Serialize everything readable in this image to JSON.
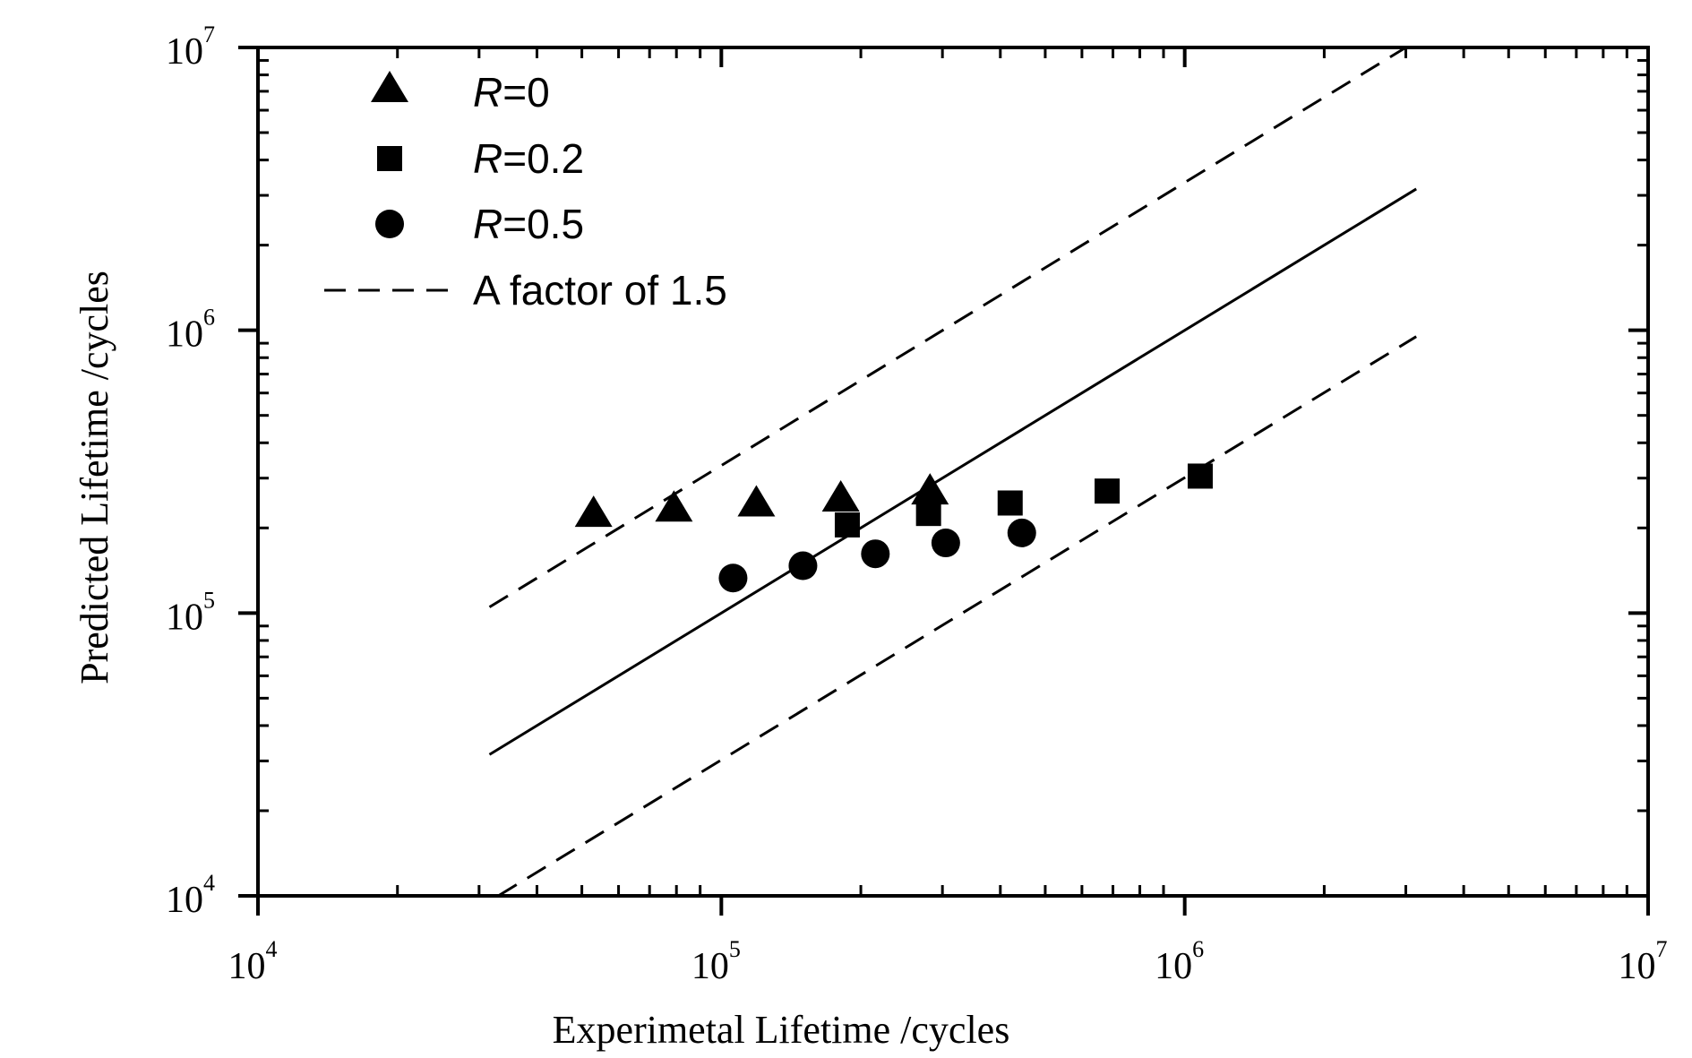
{
  "chart_data": {
    "type": "scatter",
    "xlabel": "Experimetal Lifetime /cycles",
    "ylabel": "Predicted Lifetime /cycles",
    "x_scale": "log",
    "y_scale": "log",
    "xlim": [
      10000,
      10000000
    ],
    "ylim": [
      10000,
      10000000
    ],
    "x_major_ticks": [
      {
        "base": "10",
        "exp": "4",
        "value": 10000
      },
      {
        "base": "10",
        "exp": "5",
        "value": 100000
      },
      {
        "base": "10",
        "exp": "6",
        "value": 1000000
      },
      {
        "base": "10",
        "exp": "7",
        "value": 10000000
      }
    ],
    "y_major_ticks": [
      {
        "base": "10",
        "exp": "4",
        "value": 10000
      },
      {
        "base": "10",
        "exp": "5",
        "value": 100000
      },
      {
        "base": "10",
        "exp": "6",
        "value": 1000000
      },
      {
        "base": "10",
        "exp": "7",
        "value": 10000000
      }
    ],
    "grid": false,
    "legend_position": "top-left",
    "series": [
      {
        "name_var": "R",
        "name_rest": "=0",
        "marker": "triangle",
        "x": [
          53000,
          79000,
          119000,
          181000,
          282000
        ],
        "y": [
          225000,
          235000,
          245000,
          255000,
          270000
        ]
      },
      {
        "name_var": "R",
        "name_rest": "=0.2",
        "marker": "square",
        "x": [
          187000,
          280000,
          420000,
          680000,
          1080000
        ],
        "y": [
          205000,
          225000,
          245000,
          270000,
          305000
        ]
      },
      {
        "name_var": "R",
        "name_rest": "=0.5",
        "marker": "circle",
        "x": [
          106000,
          150000,
          215000,
          305000,
          445000
        ],
        "y": [
          133000,
          147000,
          162000,
          177000,
          192000
        ]
      }
    ],
    "reference_lines": [
      {
        "style": "solid",
        "x": [
          31600,
          3160000
        ],
        "y": [
          31600,
          3160000
        ]
      },
      {
        "style": "dashed",
        "x": [
          31600,
          3000000
        ],
        "y": [
          105000,
          10000000
        ]
      },
      {
        "style": "dashed",
        "x": [
          33000,
          3160000
        ],
        "y": [
          10000,
          950000
        ]
      }
    ],
    "dashed_legend_label": "A factor of 1.5"
  }
}
